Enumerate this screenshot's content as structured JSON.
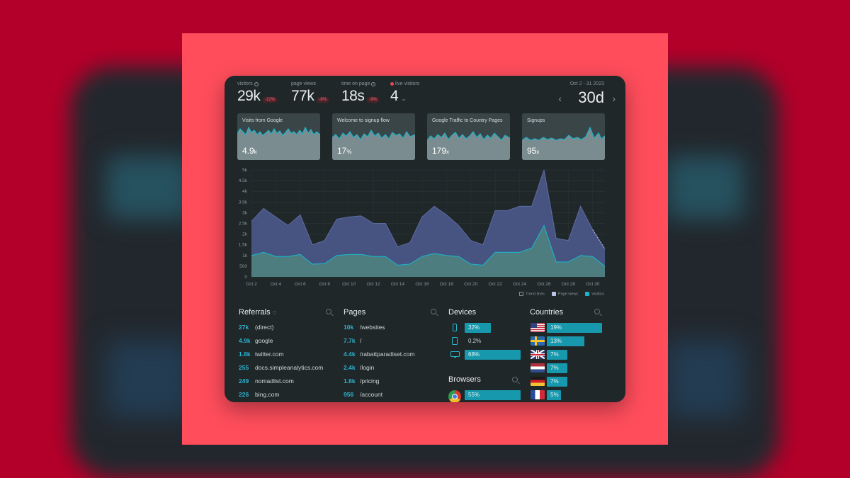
{
  "header": {
    "stats": [
      {
        "label": "visitors",
        "value": "29k",
        "change": "-22%"
      },
      {
        "label": "page views",
        "value": "77k",
        "change": "-8%"
      },
      {
        "label": "time on page",
        "value": "18s",
        "change": "-9%"
      },
      {
        "label": "live visitors",
        "value": "4"
      }
    ],
    "date_range": "Oct 2 - 31 2023",
    "period": "30d"
  },
  "goals": [
    {
      "title": "Visits from Google",
      "value": "4.9",
      "unit": "k"
    },
    {
      "title": "Welcome to signup flow",
      "value": "17",
      "unit": "%"
    },
    {
      "title": "Google Traffic to Country Pages",
      "value": "179",
      "unit": "x"
    },
    {
      "title": "Signups",
      "value": "95",
      "unit": "x"
    }
  ],
  "chart_data": {
    "type": "area",
    "x": [
      "Oct 2",
      "Oct 3",
      "Oct 4",
      "Oct 5",
      "Oct 6",
      "Oct 7",
      "Oct 8",
      "Oct 9",
      "Oct 10",
      "Oct 11",
      "Oct 12",
      "Oct 13",
      "Oct 14",
      "Oct 15",
      "Oct 16",
      "Oct 17",
      "Oct 18",
      "Oct 19",
      "Oct 20",
      "Oct 21",
      "Oct 22",
      "Oct 23",
      "Oct 24",
      "Oct 25",
      "Oct 26",
      "Oct 27",
      "Oct 28",
      "Oct 29",
      "Oct 30",
      "Oct 31"
    ],
    "xticks": [
      "Oct 2",
      "Oct 4",
      "Oct 6",
      "Oct 8",
      "Oct 10",
      "Oct 12",
      "Oct 14",
      "Oct 16",
      "Oct 18",
      "Oct 20",
      "Oct 22",
      "Oct 24",
      "Oct 26",
      "Oct 28",
      "Oct 30"
    ],
    "yticks": [
      "0",
      "500",
      "1k",
      "1.5k",
      "2k",
      "2.5k",
      "3k",
      "3.5k",
      "4k",
      "4.5k",
      "5k"
    ],
    "ylim": [
      0,
      5000
    ],
    "series": [
      {
        "name": "Page views",
        "color": "#5b6aa0",
        "values": [
          2600,
          3200,
          2800,
          2400,
          2900,
          1500,
          1700,
          2700,
          2800,
          2850,
          2500,
          2500,
          1400,
          1600,
          2800,
          3300,
          2900,
          2400,
          1700,
          1500,
          3100,
          3100,
          3300,
          3300,
          5000,
          1800,
          1700,
          3300,
          2200,
          1300
        ]
      },
      {
        "name": "Visitors",
        "color": "#1bb3c9",
        "values": [
          1000,
          1150,
          950,
          950,
          1050,
          600,
          620,
          1000,
          1050,
          1050,
          950,
          950,
          550,
          600,
          950,
          1100,
          1000,
          950,
          600,
          550,
          1150,
          1150,
          1150,
          1350,
          2400,
          700,
          700,
          1000,
          950,
          500
        ]
      }
    ],
    "legend": [
      "Trend lines",
      "Page views",
      "Visitors"
    ]
  },
  "referrals": {
    "title": "Referrals",
    "items": [
      {
        "value": "27k",
        "label": "(direct)"
      },
      {
        "value": "4.9k",
        "label": "google"
      },
      {
        "value": "1.8k",
        "label": "twitter.com"
      },
      {
        "value": "255",
        "label": "docs.simpleanalytics.com"
      },
      {
        "value": "249",
        "label": "nomadlist.com"
      },
      {
        "value": "226",
        "label": "bing.com"
      }
    ]
  },
  "pages": {
    "title": "Pages",
    "items": [
      {
        "value": "10k",
        "label": "/websites"
      },
      {
        "value": "7.7k",
        "label": "/"
      },
      {
        "value": "4.4k",
        "label": "/rabattparadiset.com"
      },
      {
        "value": "2.4k",
        "label": "/login"
      },
      {
        "value": "1.8k",
        "label": "/pricing"
      },
      {
        "value": "956",
        "label": "/account"
      }
    ]
  },
  "devices": {
    "title": "Devices",
    "items": [
      {
        "icon": "mobile-icon",
        "pct": "32%",
        "fraction": 0.32
      },
      {
        "icon": "tablet-icon",
        "pct": "0.2%",
        "fraction": 0.002
      },
      {
        "icon": "desktop-icon",
        "pct": "68%",
        "fraction": 0.68
      }
    ]
  },
  "browsers": {
    "title": "Browsers",
    "items": [
      {
        "icon": "chrome-icon",
        "pct": "55%",
        "fraction": 0.55
      }
    ]
  },
  "countries": {
    "title": "Countries",
    "items": [
      {
        "flag": "us-flag-icon",
        "pct": "19%",
        "fraction": 0.19
      },
      {
        "flag": "se-flag-icon",
        "pct": "13%",
        "fraction": 0.13
      },
      {
        "flag": "uk-flag-icon",
        "pct": "7%",
        "fraction": 0.07
      },
      {
        "flag": "nl-flag-icon",
        "pct": "7%",
        "fraction": 0.07
      },
      {
        "flag": "de-flag-icon",
        "pct": "7%",
        "fraction": 0.07
      },
      {
        "flag": "fr-flag-icon",
        "pct": "5%",
        "fraction": 0.05
      }
    ]
  },
  "colors": {
    "accent": "#1798ac",
    "negative": "#ff6b78",
    "brand_bg": "#ff4d5c"
  }
}
